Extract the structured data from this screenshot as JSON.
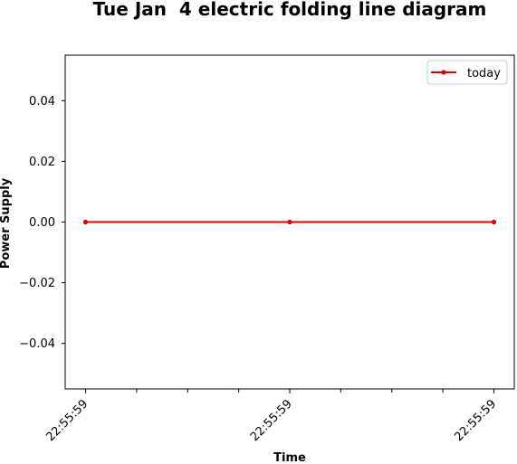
{
  "chart_data": {
    "type": "line",
    "title": "Tue Jan  4 electric folding line diagram",
    "xlabel": "Time",
    "ylabel": "Power Supply",
    "x": [
      0,
      1,
      2
    ],
    "x_tick_labels": [
      "22:55:59",
      "22:55:59",
      "22:55:59"
    ],
    "minor_x_ticks": [
      0.25,
      0.5,
      0.75,
      1.25,
      1.5,
      1.75
    ],
    "xlim": [
      -0.1,
      2.1
    ],
    "ylim": [
      -0.055,
      0.055
    ],
    "y_ticks": [
      -0.04,
      -0.02,
      0.0,
      0.02,
      0.04
    ],
    "y_tick_labels": [
      "−0.04",
      "−0.02",
      "0.00",
      "0.02",
      "0.04"
    ],
    "series": [
      {
        "name": "today",
        "values": [
          0,
          0,
          0
        ],
        "color": "#dd0000",
        "marker": "dot"
      }
    ],
    "legend": {
      "position": "top-right"
    },
    "grid": false
  }
}
